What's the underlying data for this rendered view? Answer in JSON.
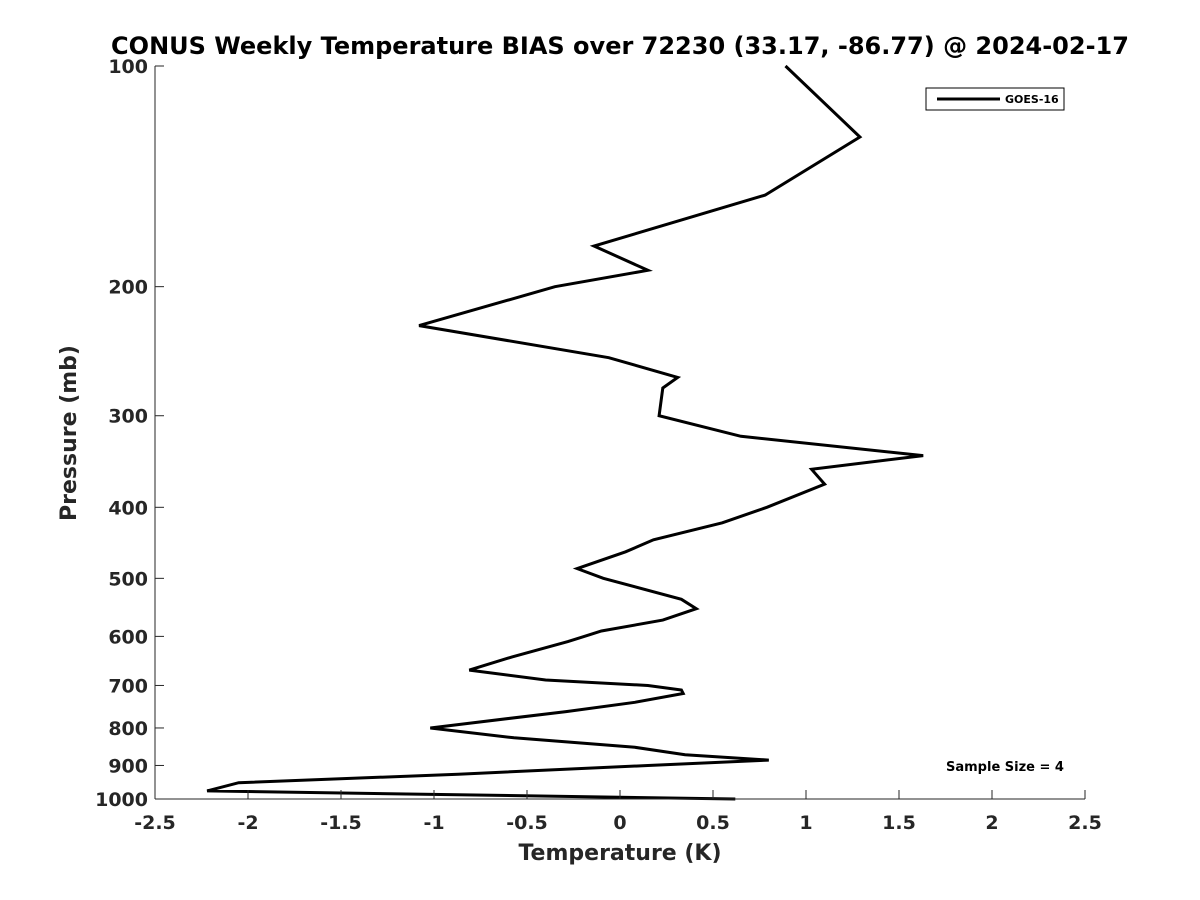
{
  "chart_data": {
    "type": "line",
    "title": "CONUS Weekly Temperature BIAS over 72230 (33.17, -86.77) @ 2024-02-17",
    "xlabel": "Temperature (K)",
    "ylabel": "Pressure (mb)",
    "xlim": [
      -2.5,
      2.5
    ],
    "ylim": [
      100,
      1000
    ],
    "y_scale": "log",
    "y_reversed": true,
    "x_ticks": [
      "-2.5",
      "-2",
      "-1.5",
      "-1",
      "-0.5",
      "0",
      "0.5",
      "1",
      "1.5",
      "2",
      "2.5"
    ],
    "x_tick_values": [
      -2.5,
      -2,
      -1.5,
      -1,
      -0.5,
      0,
      0.5,
      1,
      1.5,
      2,
      2.5
    ],
    "y_ticks": [
      "100",
      "200",
      "300",
      "400",
      "500",
      "600",
      "700",
      "800",
      "900",
      "1000"
    ],
    "y_tick_values": [
      100,
      200,
      300,
      400,
      500,
      600,
      700,
      800,
      900,
      1000
    ],
    "grid": false,
    "legend_position": "top-right",
    "line_color": "#000000",
    "annotation": "Sample Size = 4",
    "series": [
      {
        "name": "GOES-16",
        "points": [
          [
            0.89,
            100
          ],
          [
            1.29,
            125
          ],
          [
            0.78,
            150
          ],
          [
            -0.14,
            176
          ],
          [
            0.15,
            190
          ],
          [
            -0.35,
            200
          ],
          [
            -1.08,
            226
          ],
          [
            -0.06,
            250
          ],
          [
            0.31,
            266
          ],
          [
            0.23,
            275
          ],
          [
            0.21,
            300
          ],
          [
            0.65,
            320
          ],
          [
            1.63,
            340
          ],
          [
            1.03,
            355
          ],
          [
            1.1,
            372
          ],
          [
            0.79,
            400
          ],
          [
            0.55,
            420
          ],
          [
            0.18,
            443
          ],
          [
            0.03,
            460
          ],
          [
            -0.23,
            485
          ],
          [
            -0.09,
            500
          ],
          [
            0.33,
            534
          ],
          [
            0.41,
            550
          ],
          [
            0.23,
            570
          ],
          [
            -0.1,
            590
          ],
          [
            -0.28,
            610
          ],
          [
            -0.58,
            640
          ],
          [
            -0.81,
            667
          ],
          [
            -0.4,
            688
          ],
          [
            0.15,
            700
          ],
          [
            0.33,
            710
          ],
          [
            0.34,
            718
          ],
          [
            0.08,
            738
          ],
          [
            -0.29,
            760
          ],
          [
            -0.81,
            788
          ],
          [
            -1.02,
            800
          ],
          [
            -0.57,
            825
          ],
          [
            0.08,
            850
          ],
          [
            0.35,
            870
          ],
          [
            0.8,
            885
          ],
          [
            0.15,
            900
          ],
          [
            -0.87,
            925
          ],
          [
            -2.05,
            950
          ],
          [
            -2.22,
            975
          ],
          [
            0.62,
            1000
          ]
        ]
      }
    ]
  }
}
